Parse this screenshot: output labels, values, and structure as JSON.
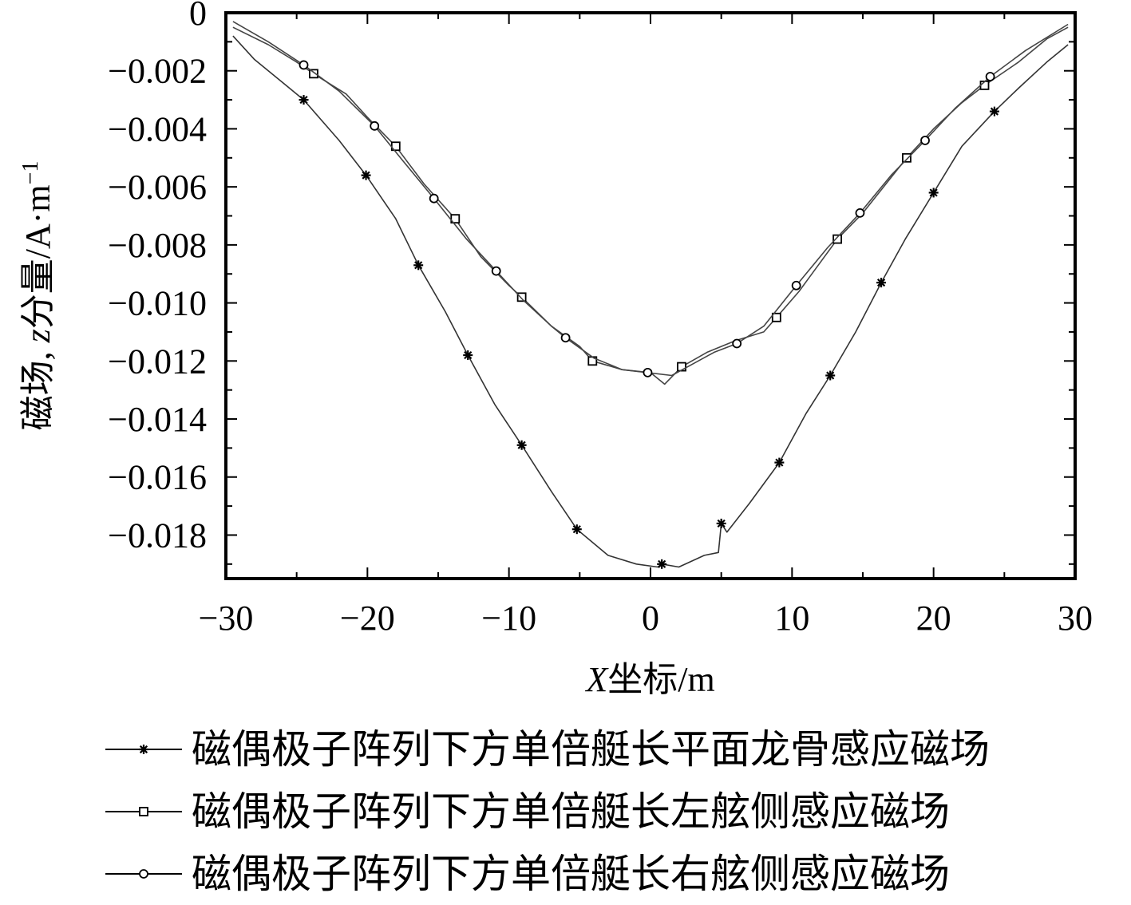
{
  "chart_data": {
    "type": "line",
    "xlabel_italic": "X",
    "xlabel_rest": "坐标/m",
    "ylabel_prefix": "磁场, ",
    "ylabel_italic": "z",
    "ylabel_rest": "分量/A·m",
    "ylabel_sup": "−1",
    "xlim": [
      -30,
      30
    ],
    "ylim": [
      -0.0195,
      0
    ],
    "x_ticks": [
      -30,
      -20,
      -10,
      0,
      10,
      20,
      30
    ],
    "x_tick_labels": [
      "−30",
      "−20",
      "−10",
      "0",
      "10",
      "20",
      "30"
    ],
    "y_ticks": [
      0,
      -0.002,
      -0.004,
      -0.006,
      -0.008,
      -0.01,
      -0.012,
      -0.014,
      -0.016,
      -0.018
    ],
    "y_tick_labels": [
      "0",
      "−0.002",
      "−0.004",
      "−0.006",
      "−0.008",
      "−0.010",
      "−0.012",
      "−0.014",
      "−0.016",
      "−0.018"
    ],
    "grid": false,
    "legend_position": "bottom",
    "series": [
      {
        "name": "磁偶极子阵列下方单倍艇长平面龙骨感应磁场",
        "marker": "asterisk",
        "x": [
          -29.5,
          -28,
          -26,
          -24.5,
          -22,
          -20.1,
          -18,
          -16.4,
          -14.5,
          -12.9,
          -11,
          -9.1,
          -7,
          -5.2,
          -3,
          -1,
          0.5,
          0.8,
          2,
          3.8,
          4.8,
          5,
          5.4,
          7,
          9.1,
          11,
          12.7,
          14.5,
          16.3,
          18,
          20,
          22,
          24.3,
          26,
          28,
          29.5
        ],
        "y": [
          -0.0008,
          -0.0016,
          -0.0024,
          -0.003,
          -0.0044,
          -0.0056,
          -0.0071,
          -0.0087,
          -0.0103,
          -0.0118,
          -0.0135,
          -0.0149,
          -0.0165,
          -0.0178,
          -0.0187,
          -0.019,
          -0.0191,
          -0.019,
          -0.0191,
          -0.0187,
          -0.0186,
          -0.0176,
          -0.0179,
          -0.0169,
          -0.0155,
          -0.0138,
          -0.0125,
          -0.011,
          -0.0093,
          -0.0078,
          -0.0062,
          -0.0046,
          -0.0034,
          -0.0026,
          -0.0017,
          -0.0011
        ],
        "marker_x": [
          -24.5,
          -20.1,
          -16.4,
          -12.9,
          -9.1,
          -5.2,
          0.8,
          5.0,
          9.1,
          12.7,
          16.3,
          20.0,
          24.3
        ],
        "marker_y": [
          -0.003,
          -0.0056,
          -0.0087,
          -0.0118,
          -0.0149,
          -0.0178,
          -0.019,
          -0.0176,
          -0.0155,
          -0.0125,
          -0.0093,
          -0.0062,
          -0.0034
        ]
      },
      {
        "name": "磁偶极子阵列下方单倍艇长左舷侧感应磁场",
        "marker": "square",
        "x": [
          -29.5,
          -27,
          -25,
          -23.8,
          -21.5,
          -20,
          -18,
          -16,
          -13.8,
          -12,
          -10,
          -9.1,
          -7,
          -5,
          -4.1,
          -2,
          0,
          1,
          2.2,
          4,
          6,
          8,
          8.9,
          10.5,
          13.2,
          15,
          18.1,
          20,
          22,
          23.6,
          26,
          28,
          29.5
        ],
        "y": [
          -0.0005,
          -0.0011,
          -0.0017,
          -0.0021,
          -0.0028,
          -0.0036,
          -0.0046,
          -0.0059,
          -0.0071,
          -0.0084,
          -0.0094,
          -0.0098,
          -0.0108,
          -0.0115,
          -0.012,
          -0.0123,
          -0.0124,
          -0.0128,
          -0.0122,
          -0.0117,
          -0.0113,
          -0.011,
          -0.0105,
          -0.0096,
          -0.0078,
          -0.0069,
          -0.005,
          -0.004,
          -0.0031,
          -0.0025,
          -0.0017,
          -0.0009,
          -0.0005
        ],
        "marker_x": [
          -23.8,
          -18.0,
          -13.8,
          -9.1,
          -4.1,
          2.2,
          8.9,
          13.2,
          18.1,
          23.6
        ],
        "marker_y": [
          -0.0021,
          -0.0046,
          -0.0071,
          -0.0098,
          -0.012,
          -0.0122,
          -0.0105,
          -0.0078,
          -0.005,
          -0.0025
        ]
      },
      {
        "name": "磁偶极子阵列下方单倍艇长右舷侧感应磁场",
        "marker": "circle",
        "x": [
          -29.5,
          -27,
          -24.5,
          -22,
          -19.5,
          -17.5,
          -15.3,
          -13,
          -10.9,
          -9,
          -7,
          -6,
          -4,
          -2,
          -0.2,
          1.5,
          3,
          4.5,
          6.1,
          8,
          10.3,
          12.5,
          14.8,
          17,
          19.4,
          21.5,
          24,
          26.5,
          29.5
        ],
        "y": [
          -0.0003,
          -0.001,
          -0.0018,
          -0.0027,
          -0.0039,
          -0.0051,
          -0.0064,
          -0.0078,
          -0.0089,
          -0.0099,
          -0.0108,
          -0.0112,
          -0.0119,
          -0.0123,
          -0.0124,
          -0.0125,
          -0.0121,
          -0.0117,
          -0.0114,
          -0.0108,
          -0.0094,
          -0.0081,
          -0.0069,
          -0.0056,
          -0.0044,
          -0.0033,
          -0.0022,
          -0.0013,
          -0.0004
        ],
        "marker_x": [
          -24.5,
          -19.5,
          -15.3,
          -10.9,
          -6.0,
          -0.2,
          6.1,
          10.3,
          14.8,
          19.4,
          24.0
        ],
        "marker_y": [
          -0.0018,
          -0.0039,
          -0.0064,
          -0.0089,
          -0.0112,
          -0.0124,
          -0.0114,
          -0.0094,
          -0.0069,
          -0.0044,
          -0.0022
        ]
      }
    ]
  }
}
